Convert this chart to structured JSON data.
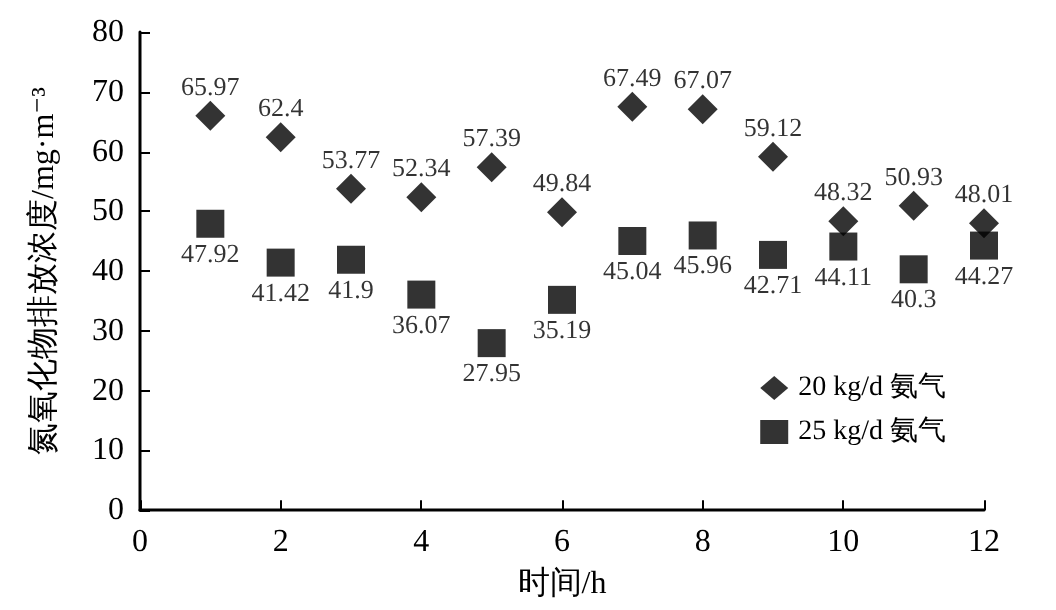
{
  "chart_data": {
    "type": "scatter",
    "xlabel": "时间/h",
    "ylabel": "氮氧化物排放浓度/mg·m⁻³",
    "x": [
      1,
      2,
      3,
      4,
      5,
      6,
      7,
      8,
      9,
      10,
      11,
      12
    ],
    "series": [
      {
        "name": "20 kg/d 氨气",
        "color": "#000000",
        "marker": "diamond",
        "values": [
          65.97,
          62.4,
          53.77,
          52.34,
          57.39,
          49.84,
          67.49,
          67.07,
          59.12,
          48.32,
          50.93,
          48.01
        ]
      },
      {
        "name": "25 kg/d 氨气",
        "color": "#000000",
        "marker": "square",
        "values": [
          47.92,
          41.42,
          41.9,
          36.07,
          27.95,
          35.19,
          45.04,
          45.96,
          42.71,
          44.11,
          40.3,
          44.27
        ]
      }
    ],
    "data_labels": true,
    "xlim": [
      0,
      12
    ],
    "xticks": [
      0,
      2,
      4,
      6,
      8,
      10,
      12
    ],
    "ylim": [
      0,
      80
    ],
    "yticks": [
      0,
      10,
      20,
      30,
      40,
      50,
      60,
      70,
      80
    ],
    "grid": false,
    "legend": "right"
  }
}
